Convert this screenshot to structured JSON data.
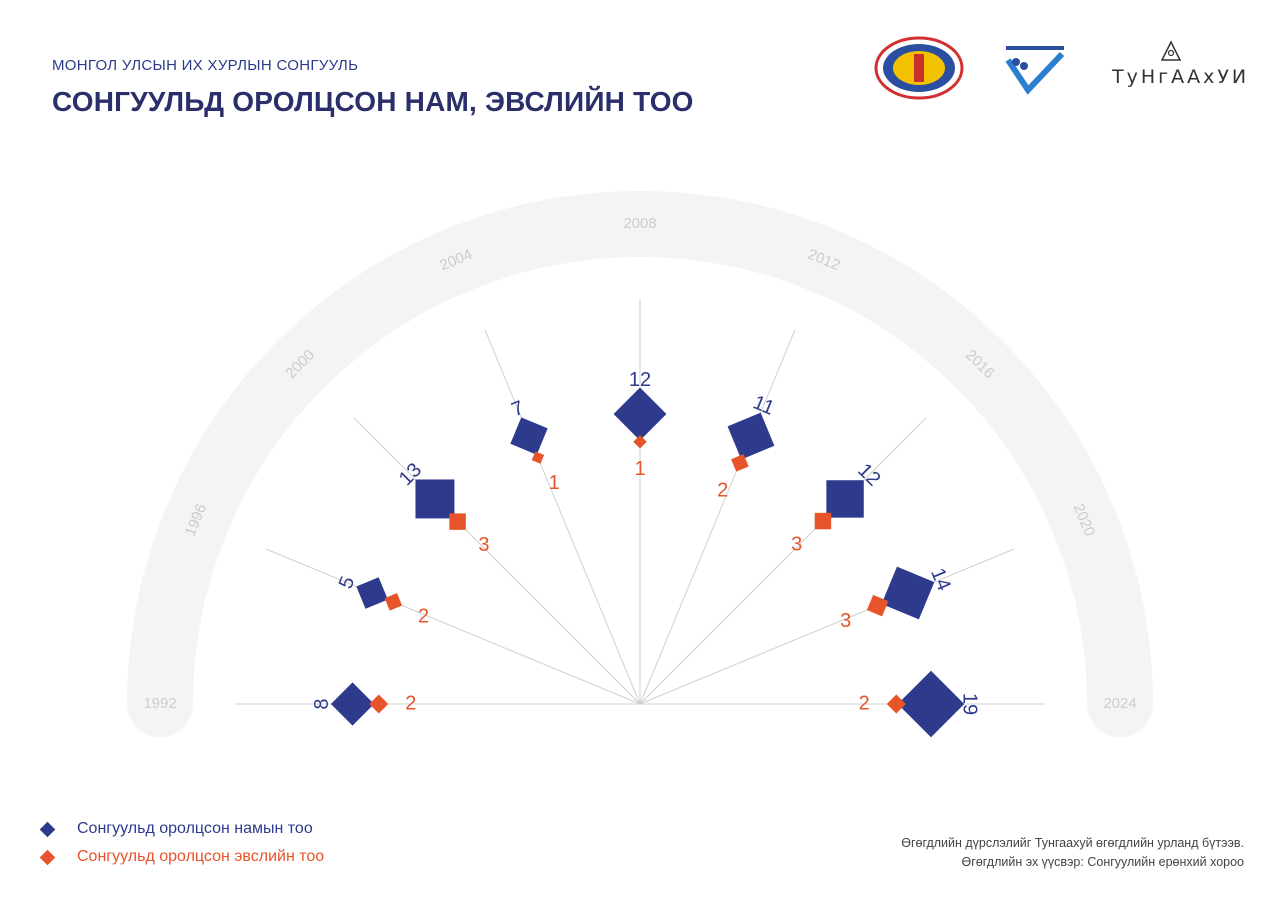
{
  "header": {
    "subtitle": "МОНГОЛ УЛСЫН ИХ ХУРЛЫН СОНГУУЛЬ",
    "title": "СОНГУУЛЬД ОРОЛЦСОН НАМ, ЭВСЛИЙН ТОО"
  },
  "logos": {
    "tungaakhui": "ТуНгААхУИ"
  },
  "colors": {
    "party": "#2e3a8c",
    "coalition": "#e8542a",
    "arc": "#f4f4f4",
    "year_label": "#cccccc"
  },
  "chart_data": {
    "type": "radial-diamond",
    "years": [
      "1992",
      "1996",
      "2000",
      "2004",
      "2008",
      "2012",
      "2016",
      "2020",
      "2024"
    ],
    "series": [
      {
        "name": "Сонгуульд оролцсон намын тоо",
        "values": [
          8,
          5,
          13,
          7,
          12,
          11,
          12,
          14,
          19
        ]
      },
      {
        "name": "Сонгуульд оролцсон эвслийн тоо",
        "values": [
          2,
          2,
          3,
          1,
          1,
          2,
          3,
          3,
          2
        ]
      }
    ]
  },
  "legend": {
    "items": [
      {
        "label": "Сонгуульд оролцсон намын тоо"
      },
      {
        "label": "Сонгуульд оролцсон эвслийн тоо"
      }
    ]
  },
  "footnote": {
    "line1": "Өгөгдлийн дүрслэлийг Тунгаахуй өгөгдлийн урланд бүтээв.",
    "line2": "Өгөгдлийн эх үүсвэр: Сонгуулийн ерөнхий хороо"
  }
}
